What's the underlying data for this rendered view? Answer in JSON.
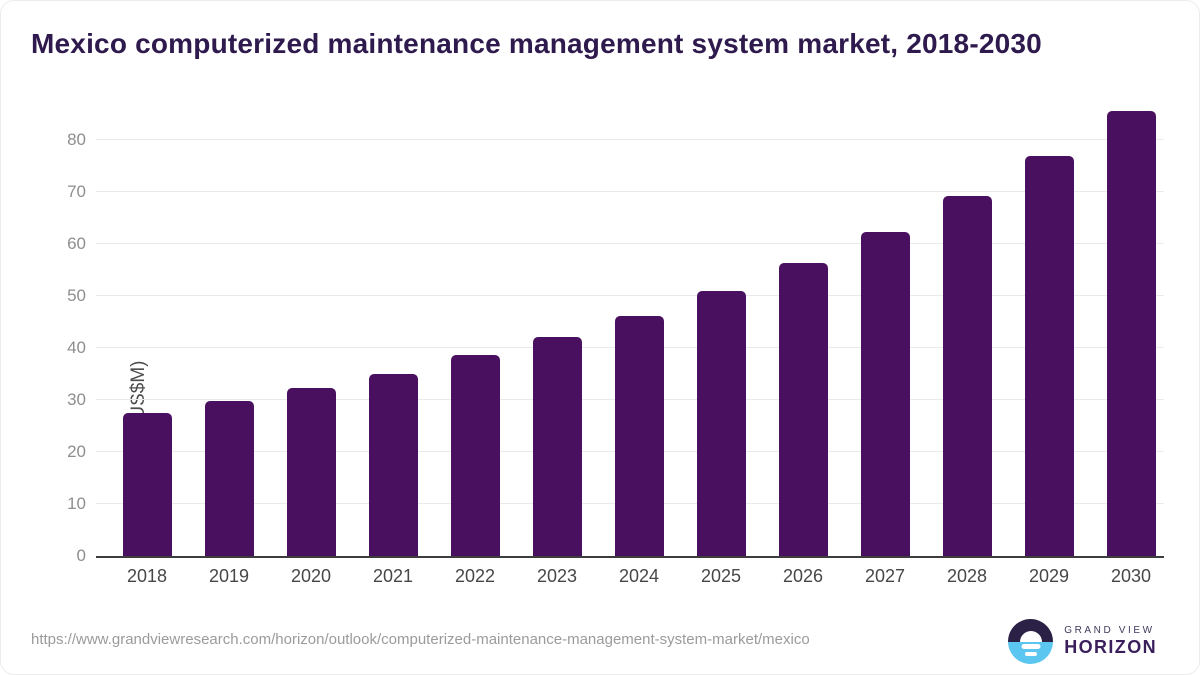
{
  "title": "Mexico computerized maintenance management system market, 2018-2030",
  "source_url": "https://www.grandviewresearch.com/horizon/outlook/computerized-maintenance-management-system-market/mexico",
  "logo": {
    "brand_top": "GRAND VIEW",
    "brand_bottom": "HORIZON"
  },
  "colors": {
    "bar": "#4a1060",
    "title": "#2e1a4d",
    "gridline": "#eaeaea",
    "axis_line": "#3d3d3d",
    "y_tick_text": "#8e8e8e",
    "x_tick_text": "#474747",
    "y_axis_title_text": "#4d4d4d",
    "source_url_text": "#9b9b9b",
    "logo_dark": "#2b2045",
    "logo_blue": "#5bc7f0"
  },
  "chart_data": {
    "type": "bar",
    "title": "Mexico computerized maintenance management system market, 2018-2030",
    "categories": [
      "2018",
      "2019",
      "2020",
      "2021",
      "2022",
      "2023",
      "2024",
      "2025",
      "2026",
      "2027",
      "2028",
      "2029",
      "2030"
    ],
    "values": [
      27.5,
      29.9,
      32.3,
      35.1,
      38.6,
      42.2,
      46.2,
      51.0,
      56.4,
      62.3,
      69.2,
      76.9,
      85.6
    ],
    "xlabel": "",
    "ylabel": "Market Size (US$M)",
    "ylim": [
      0,
      86
    ],
    "yticks": [
      0,
      10,
      20,
      30,
      40,
      50,
      60,
      70,
      80
    ],
    "grid": true,
    "legend": false,
    "bar_color": "#4a1060"
  }
}
